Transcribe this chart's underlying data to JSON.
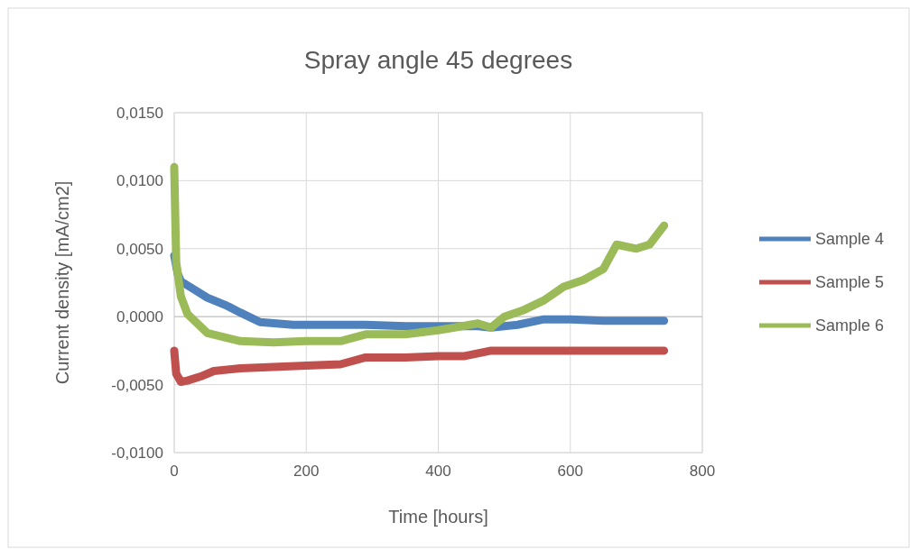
{
  "chart_data": {
    "type": "line",
    "title": "Spray angle 45 degrees",
    "xlabel": "Time [hours]",
    "ylabel": "Current density [mA/cm2]",
    "xlim": [
      0,
      800
    ],
    "xticks": [
      0,
      200,
      400,
      600,
      800
    ],
    "ylim": [
      -0.01,
      0.015
    ],
    "yticks": [
      {
        "value": -0.01,
        "label": "-0,0100"
      },
      {
        "value": -0.005,
        "label": "-0,0050"
      },
      {
        "value": 0,
        "label": "0,0000"
      },
      {
        "value": 0.005,
        "label": "0,0050"
      },
      {
        "value": 0.01,
        "label": "0,0100"
      },
      {
        "value": 0.015,
        "label": "0,0150"
      }
    ],
    "grid": true,
    "legend": "right",
    "marker": "none",
    "line_style": "solid",
    "series": [
      {
        "name": "Sample 4",
        "color": "#4f81bd",
        "x": [
          0,
          5,
          10,
          30,
          50,
          80,
          100,
          130,
          180,
          250,
          290,
          350,
          460,
          480,
          520,
          560,
          600,
          650,
          700,
          742
        ],
        "values": [
          0.0045,
          0.0032,
          0.0026,
          0.002,
          0.0014,
          0.0008,
          0.0003,
          -0.0004,
          -0.0006,
          -0.0006,
          -0.0006,
          -0.0007,
          -0.0007,
          -0.0008,
          -0.0006,
          -0.0002,
          -0.0002,
          -0.0003,
          -0.0003,
          -0.0003
        ]
      },
      {
        "name": "Sample 5",
        "color": "#c0504d",
        "x": [
          0,
          3,
          10,
          20,
          40,
          60,
          100,
          150,
          200,
          252,
          290,
          350,
          400,
          440,
          460,
          480,
          520,
          600,
          700,
          742
        ],
        "values": [
          -0.0025,
          -0.0042,
          -0.0048,
          -0.0047,
          -0.0044,
          -0.004,
          -0.0038,
          -0.0037,
          -0.0036,
          -0.0035,
          -0.003,
          -0.003,
          -0.0029,
          -0.0029,
          -0.0027,
          -0.0025,
          -0.0025,
          -0.0025,
          -0.0025,
          -0.0025
        ]
      },
      {
        "name": "Sample 6",
        "color": "#9bbb59",
        "x": [
          0,
          3,
          10,
          20,
          50,
          100,
          150,
          200,
          252,
          290,
          350,
          400,
          460,
          480,
          500,
          530,
          560,
          590,
          620,
          650,
          670,
          700,
          720,
          742
        ],
        "values": [
          0.011,
          0.004,
          0.0015,
          0.0002,
          -0.0012,
          -0.0018,
          -0.0019,
          -0.0018,
          -0.0018,
          -0.0013,
          -0.0013,
          -0.001,
          -0.0005,
          -0.0008,
          0,
          0.0005,
          0.0012,
          0.0022,
          0.0027,
          0.0035,
          0.0053,
          0.005,
          0.0053,
          0.0067
        ]
      }
    ]
  }
}
